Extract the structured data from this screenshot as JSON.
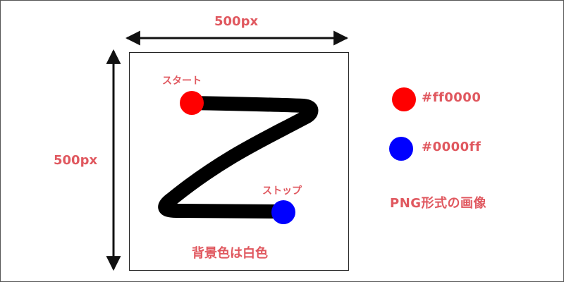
{
  "width_label": "500px",
  "height_label": "500px",
  "start_label": "スタート",
  "stop_label": "ストップ",
  "background_note": "背景色は白色",
  "format_note": "PNG形式の画像",
  "legend": [
    {
      "color": "#ff0000",
      "text": "#ff0000"
    },
    {
      "color": "#0000ff",
      "text": "#0000ff"
    }
  ],
  "colors": {
    "label_text": "#e0585f",
    "stroke": "#000000",
    "start_dot": "#ff0000",
    "stop_dot": "#0000ff",
    "canvas_background": "#ffffff"
  }
}
